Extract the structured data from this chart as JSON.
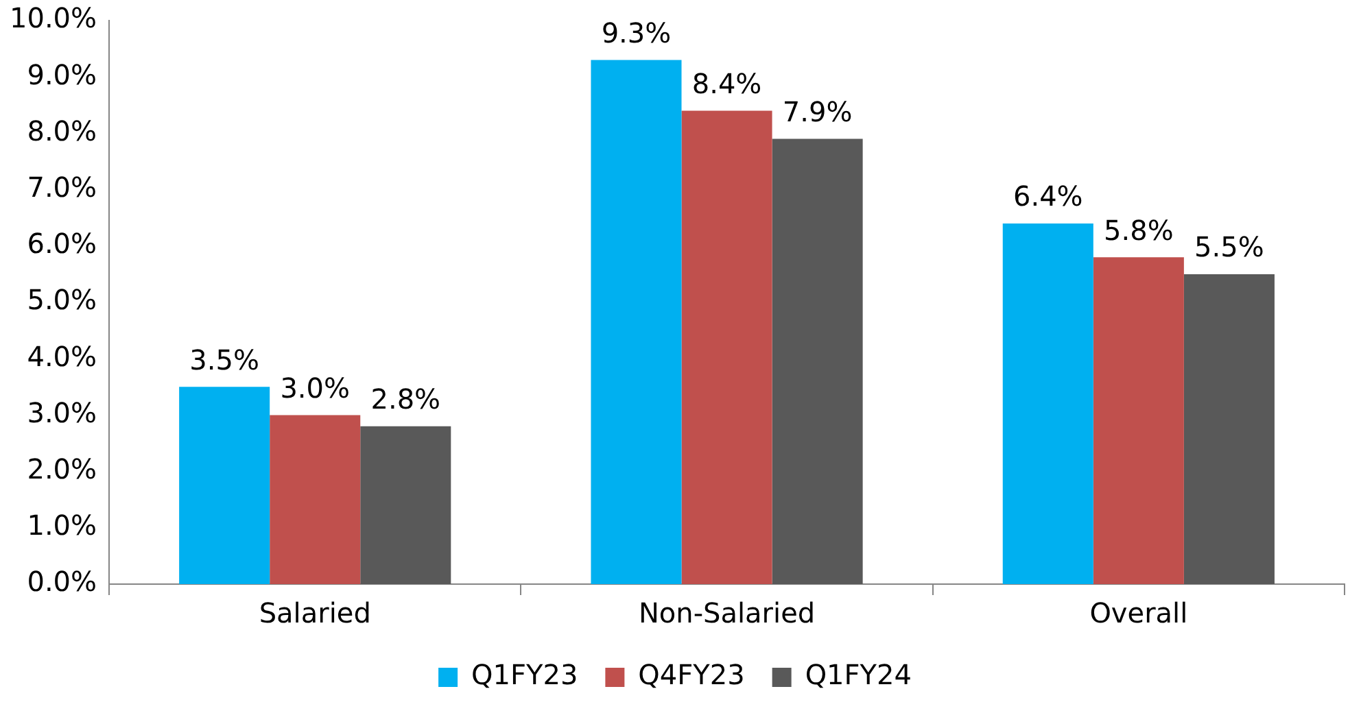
{
  "chart_data": {
    "type": "bar",
    "categories": [
      "Salaried",
      "Non-Salaried",
      "Overall"
    ],
    "series": [
      {
        "name": "Q1FY23",
        "color": "#00b0f0",
        "values": [
          3.5,
          9.3,
          6.4
        ],
        "value_labels": [
          "3.5%",
          "9.3%",
          "6.4%"
        ]
      },
      {
        "name": "Q4FY23",
        "color": "#c0504d",
        "values": [
          3.0,
          8.4,
          5.8
        ],
        "value_labels": [
          "3.0%",
          "8.4%",
          "5.8%"
        ]
      },
      {
        "name": "Q1FY24",
        "color": "#595959",
        "values": [
          2.8,
          7.9,
          5.5
        ],
        "value_labels": [
          "2.8%",
          "7.9%",
          "5.5%"
        ]
      }
    ],
    "ylim": [
      0,
      10
    ],
    "yticks": [
      {
        "value": 0,
        "label": "0.0%"
      },
      {
        "value": 1,
        "label": "1.0%"
      },
      {
        "value": 2,
        "label": "2.0%"
      },
      {
        "value": 3,
        "label": "3.0%"
      },
      {
        "value": 4,
        "label": "4.0%"
      },
      {
        "value": 5,
        "label": "5.0%"
      },
      {
        "value": 6,
        "label": "6.0%"
      },
      {
        "value": 7,
        "label": "7.0%"
      },
      {
        "value": 8,
        "label": "8.0%"
      },
      {
        "value": 9,
        "label": "9.0%"
      },
      {
        "value": 10,
        "label": "10.0%"
      }
    ],
    "grid": false,
    "legend": "bottom"
  }
}
